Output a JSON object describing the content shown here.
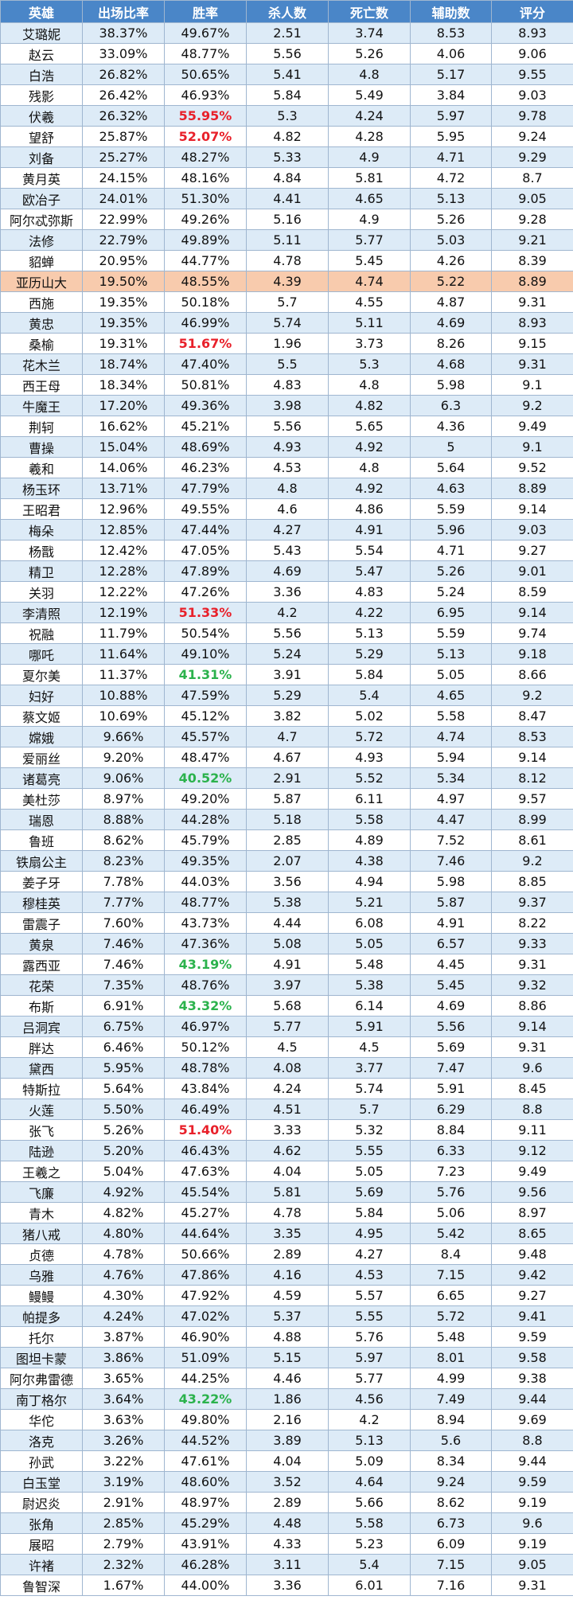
{
  "table": {
    "header": [
      "英雄",
      "出场比率",
      "胜率",
      "杀人数",
      "死亡数",
      "辅助数",
      "评分"
    ],
    "rows": [
      [
        "艾璐妮",
        "38.37%",
        "49.67%",
        "2.51",
        "3.74",
        "8.53",
        "8.93"
      ],
      [
        "赵云",
        "33.09%",
        "48.77%",
        "5.56",
        "5.26",
        "4.06",
        "9.06"
      ],
      [
        "白浩",
        "26.82%",
        "50.65%",
        "5.41",
        "4.8",
        "5.17",
        "9.55"
      ],
      [
        "残影",
        "26.42%",
        "46.93%",
        "5.84",
        "5.49",
        "3.84",
        "9.03"
      ],
      [
        "伏羲",
        "26.32%",
        "55.95%",
        "5.3",
        "4.24",
        "5.97",
        "9.78"
      ],
      [
        "望舒",
        "25.87%",
        "52.07%",
        "4.82",
        "4.28",
        "5.95",
        "9.24"
      ],
      [
        "刘备",
        "25.27%",
        "48.27%",
        "5.33",
        "4.9",
        "4.71",
        "9.29"
      ],
      [
        "黄月英",
        "24.15%",
        "48.16%",
        "4.84",
        "5.81",
        "4.72",
        "8.7"
      ],
      [
        "欧冶子",
        "24.01%",
        "51.30%",
        "4.41",
        "4.65",
        "5.13",
        "9.05"
      ],
      [
        "阿尔忒弥斯",
        "22.99%",
        "49.26%",
        "5.16",
        "4.9",
        "5.26",
        "9.28"
      ],
      [
        "法修",
        "22.79%",
        "49.89%",
        "5.11",
        "5.77",
        "5.03",
        "9.21"
      ],
      [
        "貂蝉",
        "20.95%",
        "44.77%",
        "4.78",
        "5.45",
        "4.26",
        "8.39"
      ],
      [
        "亚历山大",
        "19.50%",
        "48.55%",
        "4.39",
        "4.74",
        "5.22",
        "8.89"
      ],
      [
        "西施",
        "19.35%",
        "50.18%",
        "5.7",
        "4.55",
        "4.87",
        "9.31"
      ],
      [
        "黄忠",
        "19.35%",
        "46.99%",
        "5.74",
        "5.11",
        "4.69",
        "8.93"
      ],
      [
        "桑榆",
        "19.31%",
        "51.67%",
        "1.96",
        "3.73",
        "8.26",
        "9.15"
      ],
      [
        "花木兰",
        "18.74%",
        "47.40%",
        "5.5",
        "5.3",
        "4.68",
        "9.31"
      ],
      [
        "西王母",
        "18.34%",
        "50.81%",
        "4.83",
        "4.8",
        "5.98",
        "9.1"
      ],
      [
        "牛魔王",
        "17.20%",
        "49.36%",
        "3.98",
        "4.82",
        "6.3",
        "9.2"
      ],
      [
        "荆轲",
        "16.62%",
        "45.21%",
        "5.56",
        "5.65",
        "4.36",
        "9.49"
      ],
      [
        "曹操",
        "15.04%",
        "48.69%",
        "4.93",
        "4.92",
        "5",
        "9.1"
      ],
      [
        "羲和",
        "14.06%",
        "46.23%",
        "4.53",
        "4.8",
        "5.64",
        "9.52"
      ],
      [
        "杨玉环",
        "13.71%",
        "47.79%",
        "4.8",
        "4.92",
        "4.63",
        "8.89"
      ],
      [
        "王昭君",
        "12.96%",
        "49.55%",
        "4.6",
        "4.86",
        "5.59",
        "9.14"
      ],
      [
        "梅朵",
        "12.85%",
        "47.44%",
        "4.27",
        "4.91",
        "5.96",
        "9.03"
      ],
      [
        "杨戬",
        "12.42%",
        "47.05%",
        "5.43",
        "5.54",
        "4.71",
        "9.27"
      ],
      [
        "精卫",
        "12.28%",
        "47.89%",
        "4.69",
        "5.47",
        "5.26",
        "9.01"
      ],
      [
        "关羽",
        "12.22%",
        "47.26%",
        "3.36",
        "4.83",
        "5.24",
        "8.59"
      ],
      [
        "李清照",
        "12.19%",
        "51.33%",
        "4.2",
        "4.22",
        "6.95",
        "9.14"
      ],
      [
        "祝融",
        "11.79%",
        "50.54%",
        "5.56",
        "5.13",
        "5.59",
        "9.74"
      ],
      [
        "哪吒",
        "11.64%",
        "49.10%",
        "5.24",
        "5.29",
        "5.13",
        "9.18"
      ],
      [
        "夏尔美",
        "11.37%",
        "41.31%",
        "3.91",
        "5.84",
        "5.05",
        "8.66"
      ],
      [
        "妇好",
        "10.88%",
        "47.59%",
        "5.29",
        "5.4",
        "4.65",
        "9.2"
      ],
      [
        "蔡文姬",
        "10.69%",
        "45.12%",
        "3.82",
        "5.02",
        "5.58",
        "8.47"
      ],
      [
        "嫦娥",
        "9.66%",
        "45.57%",
        "4.7",
        "5.72",
        "4.74",
        "8.53"
      ],
      [
        "爱丽丝",
        "9.20%",
        "48.47%",
        "4.67",
        "4.93",
        "5.94",
        "9.14"
      ],
      [
        "诸葛亮",
        "9.06%",
        "40.52%",
        "2.91",
        "5.52",
        "5.34",
        "8.12"
      ],
      [
        "美杜莎",
        "8.97%",
        "49.20%",
        "5.87",
        "6.11",
        "4.97",
        "9.57"
      ],
      [
        "瑞恩",
        "8.88%",
        "44.28%",
        "5.18",
        "5.58",
        "4.47",
        "8.99"
      ],
      [
        "鲁班",
        "8.62%",
        "45.79%",
        "2.85",
        "4.89",
        "7.52",
        "8.61"
      ],
      [
        "铁扇公主",
        "8.23%",
        "49.35%",
        "2.07",
        "4.38",
        "7.46",
        "9.2"
      ],
      [
        "姜子牙",
        "7.78%",
        "44.03%",
        "3.56",
        "4.94",
        "5.98",
        "8.85"
      ],
      [
        "穆桂英",
        "7.77%",
        "48.77%",
        "5.38",
        "5.21",
        "5.87",
        "9.37"
      ],
      [
        "雷震子",
        "7.60%",
        "43.73%",
        "4.44",
        "6.08",
        "4.91",
        "8.22"
      ],
      [
        "黄泉",
        "7.46%",
        "47.36%",
        "5.08",
        "5.05",
        "6.57",
        "9.33"
      ],
      [
        "露西亚",
        "7.46%",
        "43.19%",
        "4.91",
        "5.48",
        "4.45",
        "9.31"
      ],
      [
        "花荣",
        "7.35%",
        "48.76%",
        "3.97",
        "5.38",
        "5.45",
        "9.32"
      ],
      [
        "布斯",
        "6.91%",
        "43.32%",
        "5.68",
        "6.14",
        "4.69",
        "8.86"
      ],
      [
        "吕洞宾",
        "6.75%",
        "46.97%",
        "5.77",
        "5.91",
        "5.56",
        "9.14"
      ],
      [
        "胖达",
        "6.46%",
        "50.12%",
        "4.5",
        "4.5",
        "5.69",
        "9.31"
      ],
      [
        "黛西",
        "5.95%",
        "48.78%",
        "4.08",
        "3.77",
        "7.47",
        "9.6"
      ],
      [
        "特斯拉",
        "5.64%",
        "43.84%",
        "4.24",
        "5.74",
        "5.91",
        "8.45"
      ],
      [
        "火莲",
        "5.50%",
        "46.49%",
        "4.51",
        "5.7",
        "6.29",
        "8.8"
      ],
      [
        "张飞",
        "5.26%",
        "51.40%",
        "3.33",
        "5.32",
        "8.84",
        "9.11"
      ],
      [
        "陆逊",
        "5.20%",
        "46.43%",
        "4.62",
        "5.55",
        "6.33",
        "9.12"
      ],
      [
        "王羲之",
        "5.04%",
        "47.63%",
        "4.04",
        "5.05",
        "7.23",
        "9.49"
      ],
      [
        "飞廉",
        "4.92%",
        "45.54%",
        "5.81",
        "5.69",
        "5.76",
        "9.56"
      ],
      [
        "青木",
        "4.82%",
        "45.27%",
        "4.78",
        "5.84",
        "5.06",
        "8.97"
      ],
      [
        "猪八戒",
        "4.80%",
        "44.64%",
        "3.35",
        "4.95",
        "5.42",
        "8.65"
      ],
      [
        "贞德",
        "4.78%",
        "50.66%",
        "2.89",
        "4.27",
        "8.4",
        "9.48"
      ],
      [
        "乌雅",
        "4.76%",
        "47.86%",
        "4.16",
        "4.53",
        "7.15",
        "9.42"
      ],
      [
        "鳗鳗",
        "4.30%",
        "47.92%",
        "4.59",
        "5.57",
        "6.65",
        "9.27"
      ],
      [
        "帕提多",
        "4.24%",
        "47.02%",
        "5.37",
        "5.55",
        "5.72",
        "9.41"
      ],
      [
        "托尔",
        "3.87%",
        "46.90%",
        "4.88",
        "5.76",
        "5.48",
        "9.59"
      ],
      [
        "图坦卡蒙",
        "3.86%",
        "51.09%",
        "5.15",
        "5.97",
        "8.01",
        "9.58"
      ],
      [
        "阿尔弗雷德",
        "3.65%",
        "44.25%",
        "4.46",
        "5.77",
        "4.99",
        "9.38"
      ],
      [
        "南丁格尔",
        "3.64%",
        "43.22%",
        "1.86",
        "4.56",
        "7.49",
        "9.44"
      ],
      [
        "华佗",
        "3.63%",
        "49.80%",
        "2.16",
        "4.2",
        "8.94",
        "9.69"
      ],
      [
        "洛克",
        "3.26%",
        "44.52%",
        "3.89",
        "5.13",
        "5.6",
        "8.8"
      ],
      [
        "孙武",
        "3.22%",
        "47.61%",
        "4.04",
        "5.09",
        "8.34",
        "9.44"
      ],
      [
        "白玉堂",
        "3.19%",
        "48.60%",
        "3.52",
        "4.64",
        "9.24",
        "9.59"
      ],
      [
        "尉迟炎",
        "2.91%",
        "48.97%",
        "2.89",
        "5.66",
        "8.62",
        "9.19"
      ],
      [
        "张角",
        "2.85%",
        "45.29%",
        "4.48",
        "5.58",
        "6.73",
        "9.6"
      ],
      [
        "展昭",
        "2.79%",
        "43.91%",
        "4.33",
        "5.23",
        "6.09",
        "9.19"
      ],
      [
        "许褚",
        "2.32%",
        "46.28%",
        "3.11",
        "5.4",
        "7.15",
        "9.05"
      ],
      [
        "鲁智深",
        "1.67%",
        "44.00%",
        "3.36",
        "6.01",
        "7.16",
        "9.31"
      ]
    ],
    "highlight_row": 12,
    "highlight_color": "#f8cbad",
    "red_cells": [
      4,
      5,
      15,
      28,
      53
    ],
    "red_color": "#e8202a",
    "green_cells": [
      31,
      36,
      45,
      47,
      66
    ],
    "green_color": "#2bb24c",
    "emphasis_column": 2
  }
}
